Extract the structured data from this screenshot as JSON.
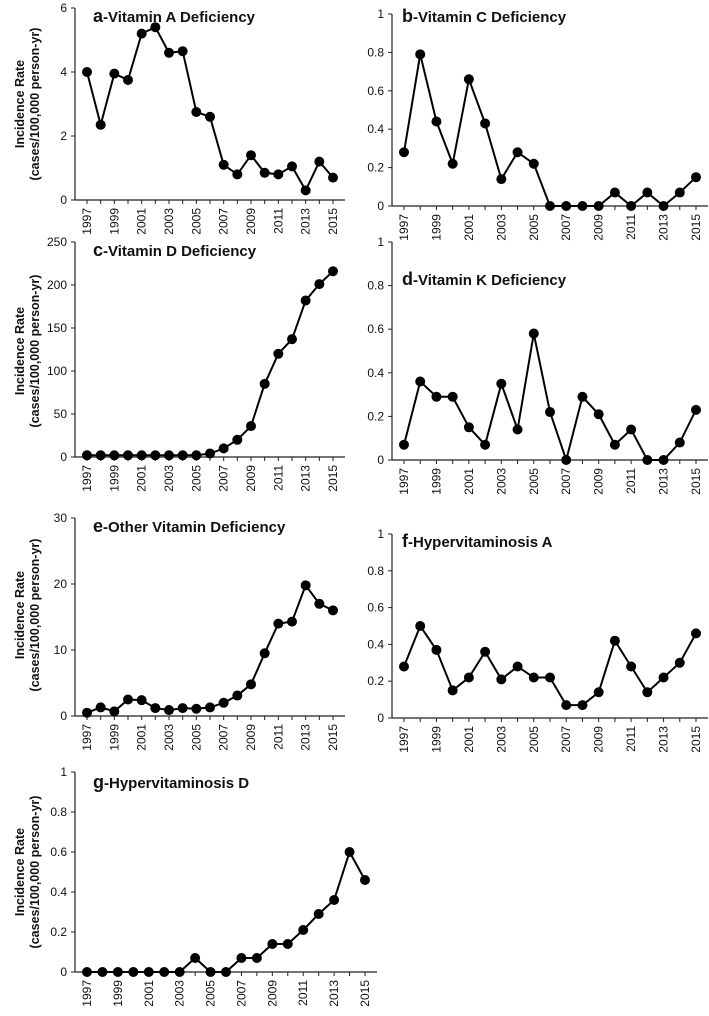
{
  "chart_data": [
    {
      "type": "line",
      "letter": "a",
      "title": "-Vitamin A Deficiency",
      "ylabel_line1": "Incidence Rate",
      "ylabel_line2": "(cases/100,000 person-yr)",
      "ylim": [
        0,
        6
      ],
      "yticks": [
        0,
        2,
        4,
        6
      ],
      "x": [
        1997,
        1998,
        1999,
        2000,
        2001,
        2002,
        2003,
        2004,
        2005,
        2006,
        2007,
        2008,
        2009,
        2010,
        2011,
        2012,
        2013,
        2014,
        2015
      ],
      "xtick_labels": [
        "1997",
        "1999",
        "2001",
        "2003",
        "2005",
        "2007",
        "2009",
        "2011",
        "2013",
        "2015"
      ],
      "values": [
        4.0,
        2.35,
        3.95,
        3.75,
        5.2,
        5.4,
        4.6,
        4.65,
        2.75,
        2.6,
        1.1,
        0.8,
        1.4,
        0.85,
        0.8,
        1.05,
        0.3,
        1.2,
        0.7
      ]
    },
    {
      "type": "line",
      "letter": "b",
      "title": "-Vitamin C Deficiency",
      "ylim": [
        0,
        1
      ],
      "yticks": [
        0,
        0.2,
        0.4,
        0.6,
        0.8,
        1
      ],
      "x": [
        1997,
        1998,
        1999,
        2000,
        2001,
        2002,
        2003,
        2004,
        2005,
        2006,
        2007,
        2008,
        2009,
        2010,
        2011,
        2012,
        2013,
        2014,
        2015
      ],
      "xtick_labels": [
        "1997",
        "1999",
        "2001",
        "2003",
        "2005",
        "2007",
        "2009",
        "2011",
        "2013",
        "2015"
      ],
      "values": [
        0.28,
        0.79,
        0.44,
        0.22,
        0.66,
        0.43,
        0.14,
        0.28,
        0.22,
        0,
        0,
        0,
        0,
        0.07,
        0,
        0.07,
        0,
        0.07,
        0.15
      ]
    },
    {
      "type": "line",
      "letter": "c",
      "title": "-Vitamin D Deficiency",
      "ylabel_line1": "Incidence Rate",
      "ylabel_line2": "(cases/100,000 person-yr)",
      "ylim": [
        0,
        250
      ],
      "yticks": [
        0,
        50,
        100,
        150,
        200,
        250
      ],
      "x": [
        1997,
        1998,
        1999,
        2000,
        2001,
        2002,
        2003,
        2004,
        2005,
        2006,
        2007,
        2008,
        2009,
        2010,
        2011,
        2012,
        2013,
        2014,
        2015
      ],
      "xtick_labels": [
        "1997",
        "1999",
        "2001",
        "2003",
        "2005",
        "2007",
        "2009",
        "2011",
        "2013",
        "2015"
      ],
      "values": [
        2,
        2,
        2,
        2,
        2,
        2,
        2,
        2,
        2,
        4,
        10,
        20,
        36,
        85,
        120,
        137,
        182,
        201,
        216
      ]
    },
    {
      "type": "line",
      "letter": "d",
      "title": "-Vitamin K Deficiency",
      "ylim": [
        0,
        1
      ],
      "yticks": [
        0,
        0.2,
        0.4,
        0.6,
        0.8,
        1
      ],
      "x": [
        1997,
        1998,
        1999,
        2000,
        2001,
        2002,
        2003,
        2004,
        2005,
        2006,
        2007,
        2008,
        2009,
        2010,
        2011,
        2012,
        2013,
        2014,
        2015
      ],
      "xtick_labels": [
        "1997",
        "1999",
        "2001",
        "2003",
        "2005",
        "2007",
        "2009",
        "2011",
        "2013",
        "2015"
      ],
      "values": [
        0.07,
        0.36,
        0.29,
        0.29,
        0.15,
        0.07,
        0.35,
        0.14,
        0.58,
        0.22,
        0,
        0.29,
        0.21,
        0.07,
        0.14,
        0,
        0,
        0.08,
        0.23
      ]
    },
    {
      "type": "line",
      "letter": "e",
      "title": "-Other Vitamin Deficiency",
      "ylabel_line1": "Incidence Rate",
      "ylabel_line2": "(cases/100,000 person-yr)",
      "ylim": [
        0,
        30
      ],
      "yticks": [
        0,
        10,
        20,
        30
      ],
      "x": [
        1997,
        1998,
        1999,
        2000,
        2001,
        2002,
        2003,
        2004,
        2005,
        2006,
        2007,
        2008,
        2009,
        2010,
        2011,
        2012,
        2013,
        2014,
        2015
      ],
      "xtick_labels": [
        "1997",
        "1999",
        "2001",
        "2003",
        "2005",
        "2007",
        "2009",
        "2011",
        "2013",
        "2015"
      ],
      "values": [
        0.5,
        1.3,
        0.7,
        2.5,
        2.4,
        1.2,
        0.9,
        1.2,
        1.1,
        1.3,
        2.0,
        3.1,
        4.8,
        9.5,
        14.0,
        14.3,
        19.8,
        17.0,
        16.0
      ]
    },
    {
      "type": "line",
      "letter": "f",
      "title": "-Hypervitaminosis A",
      "ylim": [
        0,
        1
      ],
      "yticks": [
        0,
        0.2,
        0.4,
        0.6,
        0.8,
        1
      ],
      "x": [
        1997,
        1998,
        1999,
        2000,
        2001,
        2002,
        2003,
        2004,
        2005,
        2006,
        2007,
        2008,
        2009,
        2010,
        2011,
        2012,
        2013,
        2014,
        2015
      ],
      "xtick_labels": [
        "1997",
        "1999",
        "2001",
        "2003",
        "2005",
        "2007",
        "2009",
        "2011",
        "2013",
        "2015"
      ],
      "values": [
        0.28,
        0.5,
        0.37,
        0.15,
        0.22,
        0.36,
        0.21,
        0.28,
        0.22,
        0.22,
        0.07,
        0.07,
        0.14,
        0.42,
        0.28,
        0.14,
        0.22,
        0.3,
        0.46
      ]
    },
    {
      "type": "line",
      "letter": "g",
      "title": "-Hypervitaminosis D",
      "ylabel_line1": "Incidence Rate",
      "ylabel_line2": "(cases/100,000 person-yr)",
      "ylim": [
        0,
        1
      ],
      "yticks": [
        0,
        0.2,
        0.4,
        0.6,
        0.8,
        1
      ],
      "x": [
        1997,
        1998,
        1999,
        2000,
        2001,
        2002,
        2003,
        2004,
        2005,
        2006,
        2007,
        2008,
        2009,
        2010,
        2011,
        2012,
        2013,
        2014,
        2015
      ],
      "xtick_labels": [
        "1997",
        "1999",
        "2001",
        "2003",
        "2005",
        "2007",
        "2009",
        "2011",
        "2013",
        "2015"
      ],
      "values": [
        0,
        0,
        0,
        0,
        0,
        0,
        0,
        0.07,
        0,
        0,
        0.07,
        0.07,
        0.14,
        0.14,
        0.21,
        0.29,
        0.36,
        0.6,
        0.46
      ]
    }
  ]
}
